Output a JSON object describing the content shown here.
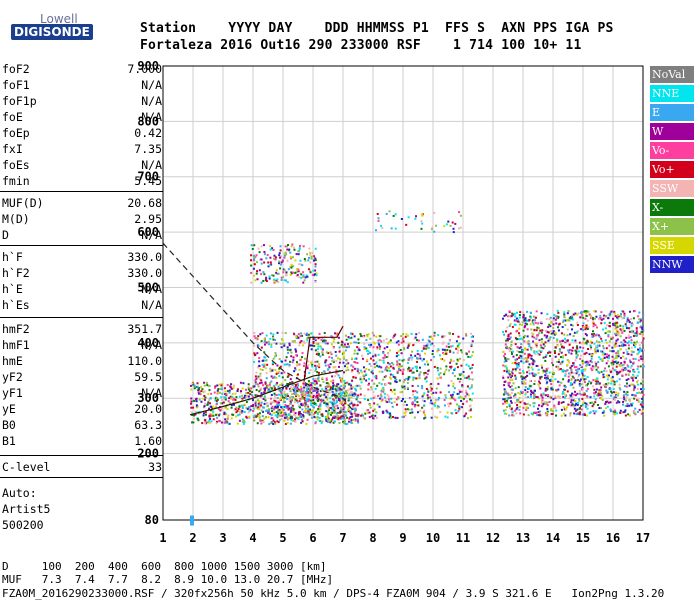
{
  "logo": {
    "top": "Lowell",
    "bottom": "DIGISONDE"
  },
  "header": {
    "line1": "Station    YYYY DAY    DDD HHMMSS P1  FFS S  AXN PPS IGA PS",
    "line2": "Fortaleza 2016 Out16 290 233000 RSF    1 714 100 10+ 11"
  },
  "params": [
    {
      "k": "foF2",
      "v": "7.000"
    },
    {
      "k": "foF1",
      "v": "N/A"
    },
    {
      "k": "foF1p",
      "v": "N/A"
    },
    {
      "k": "foE",
      "v": "N/A"
    },
    {
      "k": "foEp",
      "v": "0.42"
    },
    {
      "k": "fxI",
      "v": "7.35"
    },
    {
      "k": "foEs",
      "v": "N/A"
    },
    {
      "k": "fmin",
      "v": "5.45"
    },
    {
      "k": "MUF(D)",
      "v": "20.68"
    },
    {
      "k": "M(D)",
      "v": "2.95"
    },
    {
      "k": "D",
      "v": "N/A"
    },
    {
      "k": "h`F",
      "v": "330.0"
    },
    {
      "k": "h`F2",
      "v": "330.0"
    },
    {
      "k": "h`E",
      "v": "N/A"
    },
    {
      "k": "h`Es",
      "v": "N/A"
    },
    {
      "k": "hmF2",
      "v": "351.7"
    },
    {
      "k": "hmF1",
      "v": "N/A"
    },
    {
      "k": "hmE",
      "v": "110.0"
    },
    {
      "k": "yF2",
      "v": "59.5"
    },
    {
      "k": "yF1",
      "v": "N/A"
    },
    {
      "k": "yE",
      "v": "20.0"
    },
    {
      "k": "B0",
      "v": "63.3"
    },
    {
      "k": "B1",
      "v": "1.60"
    },
    {
      "k": "C-level",
      "v": "33"
    }
  ],
  "auto": {
    "l1": "Auto:",
    "l2": "Artist5",
    "l3": "500200"
  },
  "footer": {
    "d_line": "D     100  200  400  600  800 1000 1500 3000 [km]",
    "muf_line": "MUF   7.3  7.4  7.7  8.2  8.9 10.0 13.0 20.7 [MHz]",
    "file_line": "FZA0M_2016290233000.RSF / 320fx256h 50 kHz 5.0 km / DPS-4 FZA0M 904 / 3.9 S 321.6 E   Ion2Png 1.3.20"
  },
  "legend": [
    {
      "label": "NoVal",
      "bg": "#7f7f7f",
      "fg": "#ffffff"
    },
    {
      "label": "NNE",
      "bg": "#00e5ee",
      "fg": "#ffffff"
    },
    {
      "label": "E",
      "bg": "#39a8f0",
      "fg": "#ffffff"
    },
    {
      "label": "W",
      "bg": "#a0009a",
      "fg": "#ffffff"
    },
    {
      "label": "Vo-",
      "bg": "#ff3fa0",
      "fg": "#ffffff"
    },
    {
      "label": "Vo+",
      "bg": "#d3001c",
      "fg": "#ffffff"
    },
    {
      "label": "SSW",
      "bg": "#f4b4b4",
      "fg": "#ffffff"
    },
    {
      "label": "X-",
      "bg": "#0b7a0b",
      "fg": "#ffffff"
    },
    {
      "label": "X+",
      "bg": "#8cc24a",
      "fg": "#ffffff"
    },
    {
      "label": "SSE",
      "bg": "#d6d600",
      "fg": "#ffffff"
    },
    {
      "label": "NNW",
      "bg": "#2020c8",
      "fg": "#ffffff"
    }
  ],
  "chart_data": {
    "type": "scatter",
    "xlim": [
      1,
      17
    ],
    "ylim": [
      80,
      900
    ],
    "x_ticks": [
      1,
      2,
      3,
      4,
      5,
      6,
      7,
      8,
      9,
      10,
      11,
      12,
      13,
      14,
      15,
      16,
      17
    ],
    "y_ticks": [
      80,
      200,
      300,
      400,
      500,
      600,
      700,
      800,
      900
    ],
    "grid": true,
    "trace_clusters": [
      {
        "name": "low",
        "x_range": [
          1.9,
          11.3
        ],
        "y_range": [
          255,
          460
        ]
      },
      {
        "name": "high",
        "x_range": [
          12.3,
          17.0
        ],
        "y_range": [
          270,
          460
        ]
      },
      {
        "name": "multihop",
        "x_range": [
          3.9,
          6.1
        ],
        "y_range": [
          510,
          580
        ]
      }
    ],
    "profile_dashed": [
      [
        1,
        580
      ],
      [
        2,
        520
      ],
      [
        3,
        460
      ],
      [
        4,
        400
      ],
      [
        5,
        350
      ],
      [
        6,
        320
      ],
      [
        7,
        300
      ],
      [
        7.3,
        280
      ]
    ],
    "trace_solid": [
      [
        1.9,
        270
      ],
      [
        3,
        285
      ],
      [
        4,
        300
      ],
      [
        5,
        320
      ],
      [
        6,
        340
      ],
      [
        7,
        350
      ]
    ],
    "fof2_step": [
      [
        5.7,
        330
      ],
      [
        5.9,
        410
      ],
      [
        6.8,
        410
      ],
      [
        7,
        430
      ]
    ]
  }
}
